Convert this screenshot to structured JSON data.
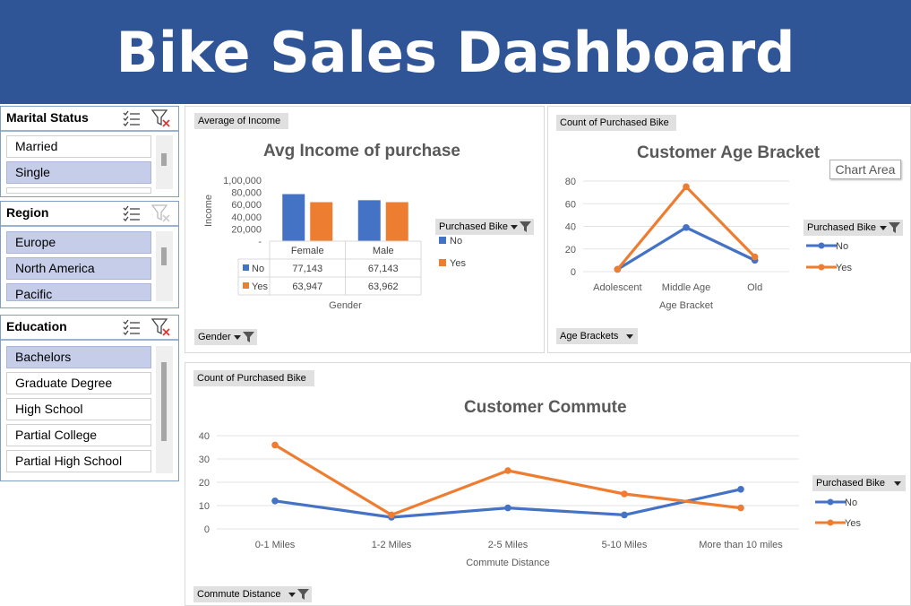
{
  "dashboard": {
    "title": "Bike Sales Dashboard"
  },
  "slicers": {
    "marital": {
      "title": "Marital Status",
      "items": [
        {
          "label": "Married",
          "selected": false
        },
        {
          "label": "Single",
          "selected": true
        }
      ]
    },
    "region": {
      "title": "Region",
      "items": [
        {
          "label": "Europe",
          "selected": true
        },
        {
          "label": "North America",
          "selected": true
        },
        {
          "label": "Pacific",
          "selected": true
        }
      ]
    },
    "education": {
      "title": "Education",
      "items": [
        {
          "label": "Bachelors",
          "selected": true
        },
        {
          "label": "Graduate Degree",
          "selected": false
        },
        {
          "label": "High School",
          "selected": false
        },
        {
          "label": "Partial College",
          "selected": false
        },
        {
          "label": "Partial High School",
          "selected": false
        }
      ]
    }
  },
  "income_panel": {
    "field_button": "Average of Income",
    "axis_button": "Gender",
    "legend_header": "Purchased Bike"
  },
  "age_panel": {
    "field_button": "Count of Purchased Bike",
    "axis_button": "Age Brackets",
    "legend_header": "Purchased Bike",
    "tooltip": "Chart Area"
  },
  "commute_panel": {
    "field_button": "Count of Purchased Bike",
    "axis_button": "Commute Distance",
    "legend_header": "Purchased Bike"
  },
  "colors": {
    "no": "#4472c4",
    "yes": "#ed7d31",
    "banner": "#2f5597"
  },
  "chart_data": [
    {
      "type": "bar",
      "title": "Avg Income of purchase",
      "xlabel": "Gender",
      "ylabel": "Income",
      "categories": [
        "Female",
        "Male"
      ],
      "ylim": [
        0,
        100000
      ],
      "yticks": [
        "-",
        "20,000",
        "40,000",
        "60,000",
        "80,000",
        "1,00,000"
      ],
      "series": [
        {
          "name": "No",
          "values": [
            77143,
            67143
          ],
          "labels": [
            "77,143",
            "67,143"
          ]
        },
        {
          "name": "Yes",
          "values": [
            63947,
            63962
          ],
          "labels": [
            "63,947",
            "63,962"
          ]
        }
      ],
      "data_table": true,
      "legend": "right"
    },
    {
      "type": "line",
      "title": "Customer Age Bracket",
      "xlabel": "Age Bracket",
      "ylabel": "",
      "categories": [
        "Adolescent",
        "Middle Age",
        "Old"
      ],
      "ylim": [
        0,
        80
      ],
      "yticks": [
        0,
        20,
        40,
        60,
        80
      ],
      "series": [
        {
          "name": "No",
          "values": [
            2,
            39,
            10
          ]
        },
        {
          "name": "Yes",
          "values": [
            2,
            75,
            13
          ]
        }
      ],
      "grid": true,
      "legend": "right"
    },
    {
      "type": "line",
      "title": "Customer Commute",
      "xlabel": "Commute Distance",
      "ylabel": "",
      "categories": [
        "0-1 Miles",
        "1-2 Miles",
        "2-5 Miles",
        "5-10 Miles",
        "More than 10 miles"
      ],
      "ylim": [
        0,
        40
      ],
      "yticks": [
        0,
        10,
        20,
        30,
        40
      ],
      "series": [
        {
          "name": "No",
          "values": [
            12,
            5,
            9,
            6,
            17
          ]
        },
        {
          "name": "Yes",
          "values": [
            36,
            6,
            25,
            15,
            9
          ]
        }
      ],
      "grid": true,
      "legend": "right"
    }
  ]
}
